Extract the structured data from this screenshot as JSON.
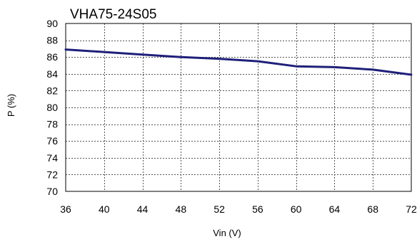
{
  "chart_data": {
    "type": "line",
    "title": "VHA75-24S05",
    "xlabel": "Vin (V)",
    "ylabel": "P (%)",
    "xlim": [
      36,
      72
    ],
    "ylim": [
      70,
      90
    ],
    "xticks": [
      "36",
      "40",
      "44",
      "48",
      "52",
      "56",
      "60",
      "64",
      "68",
      "72"
    ],
    "yticks": [
      "70",
      "72",
      "74",
      "76",
      "78",
      "80",
      "82",
      "84",
      "86",
      "88",
      "90"
    ],
    "grid": true,
    "series": [
      {
        "color": "#1f1f7a",
        "x": [
          36,
          40,
          44,
          48,
          52,
          56,
          60,
          64,
          68,
          72
        ],
        "y": [
          86.9,
          86.6,
          86.3,
          86.0,
          85.8,
          85.5,
          84.9,
          84.8,
          84.5,
          83.9
        ]
      }
    ]
  }
}
